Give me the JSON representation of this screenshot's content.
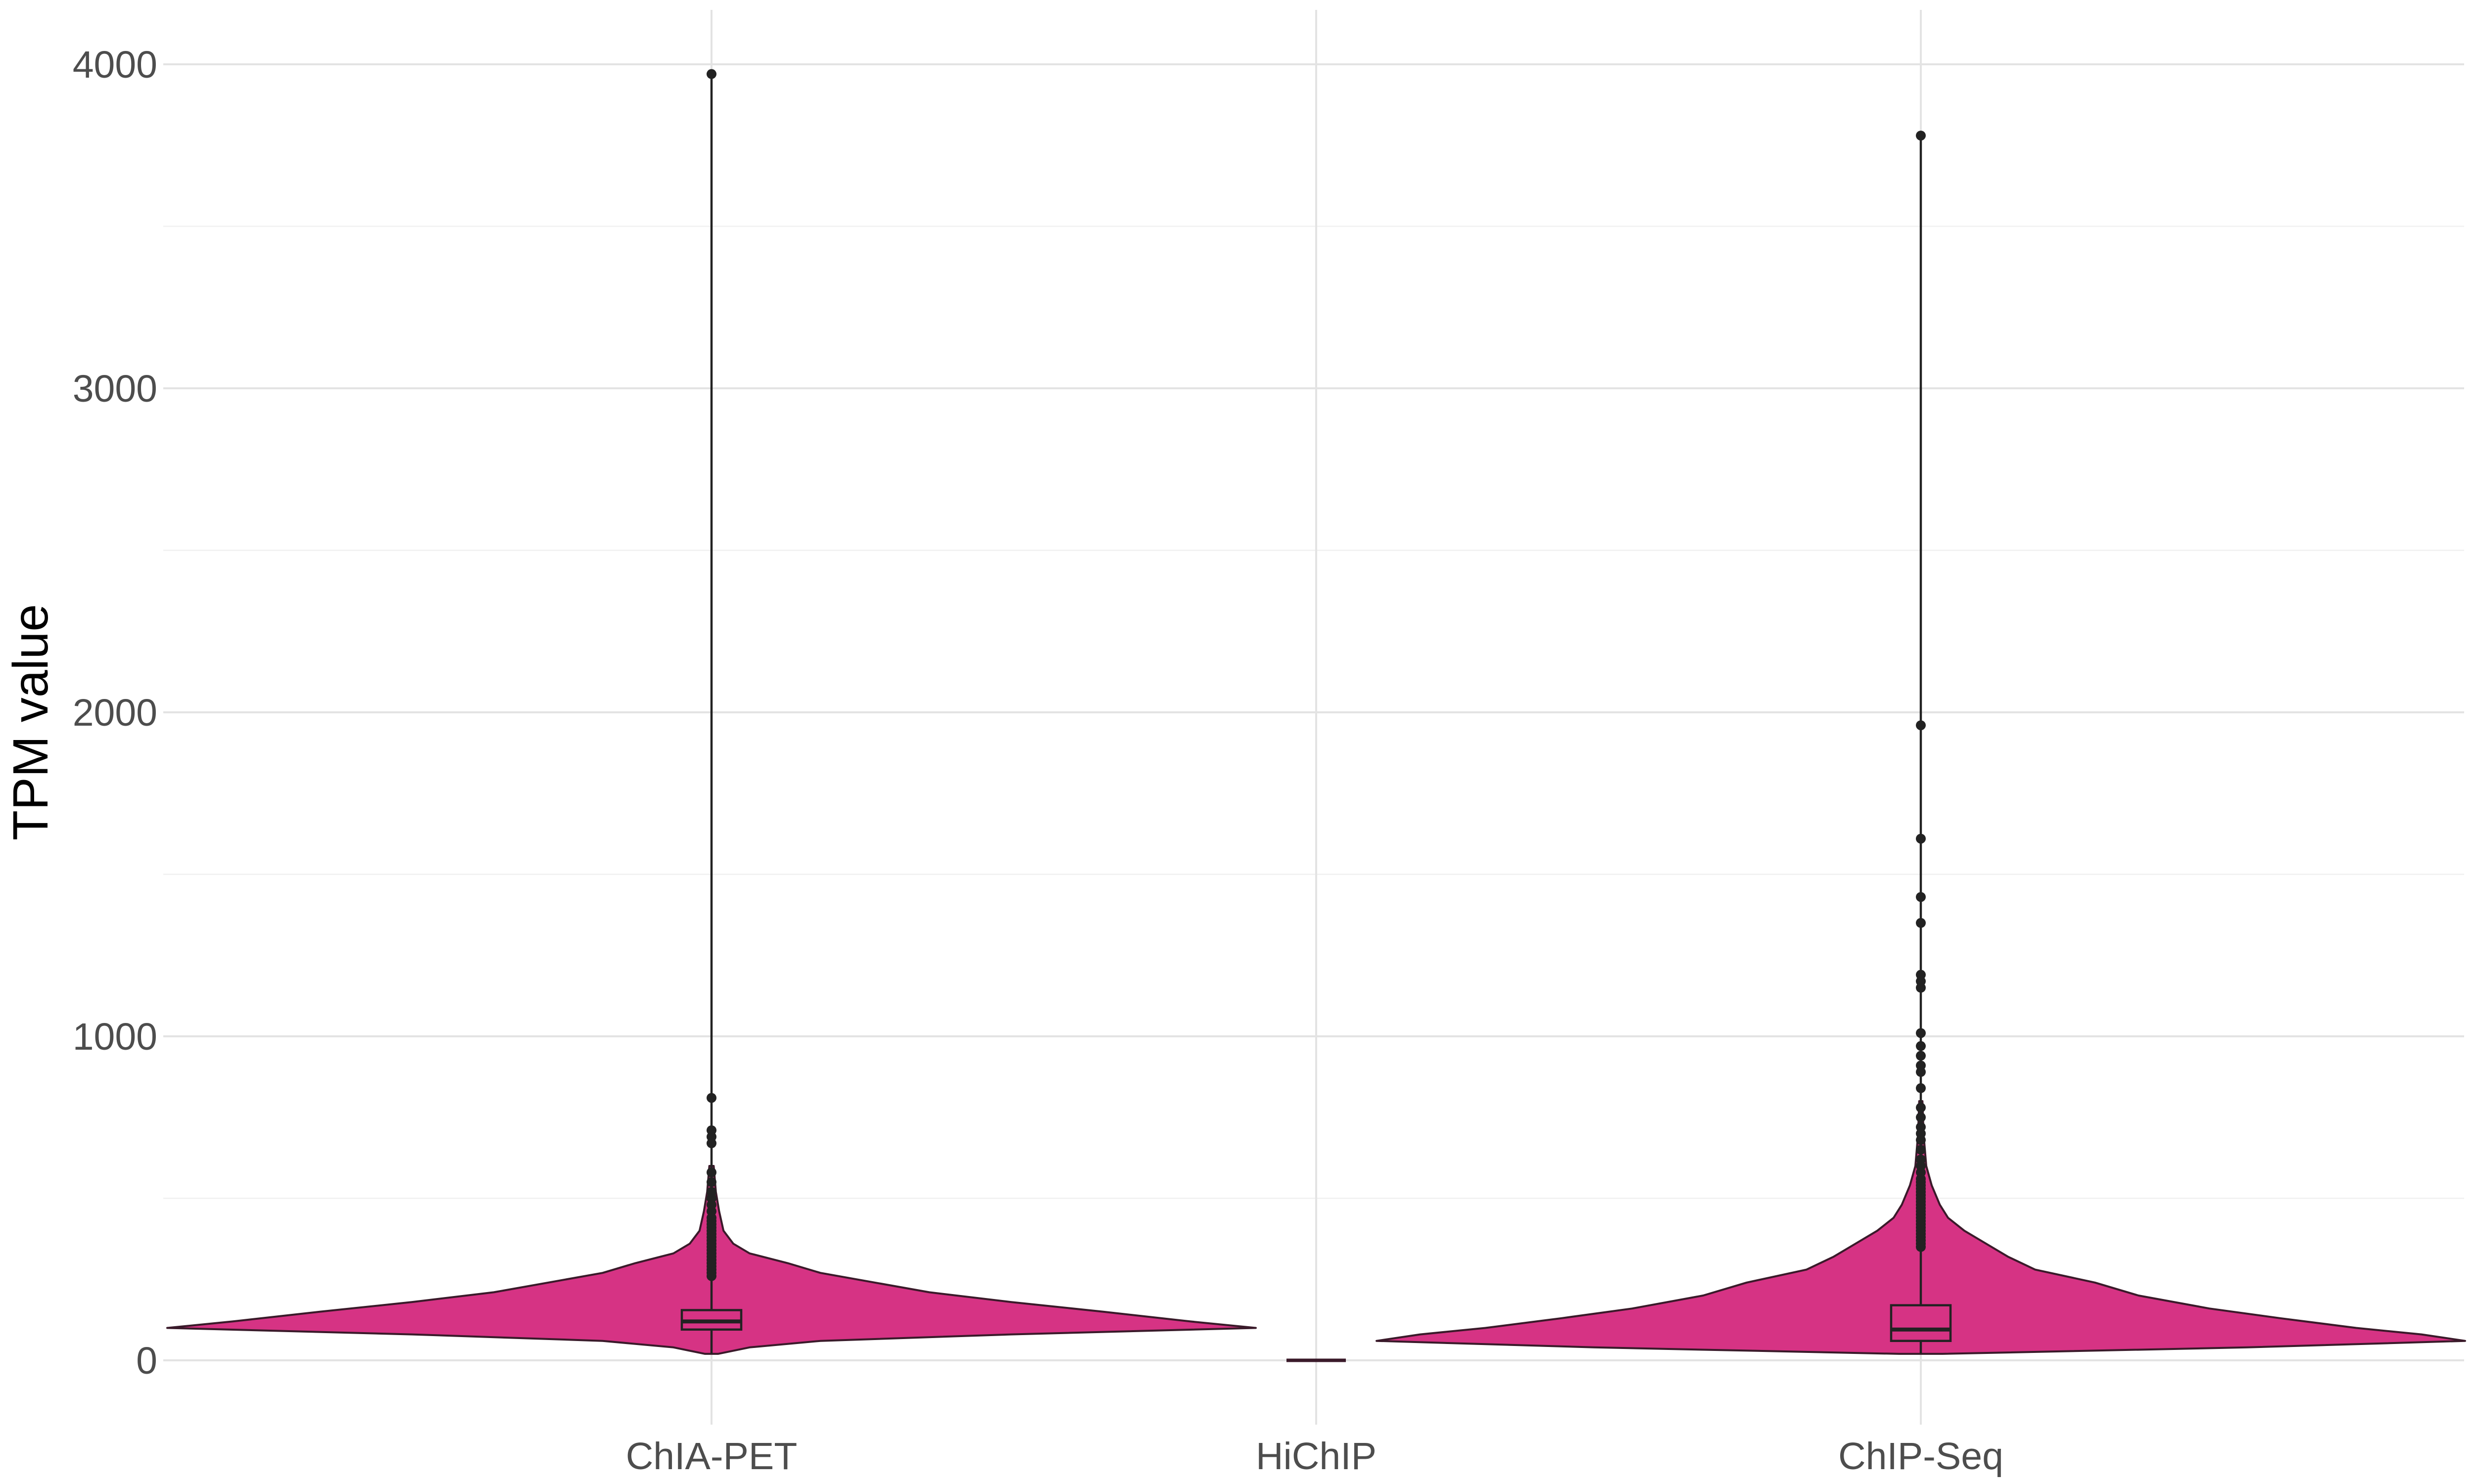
{
  "chart_data": {
    "type": "violin",
    "title": "",
    "xlabel": "",
    "ylabel": "TPM value",
    "ylim": [
      -50,
      4150
    ],
    "yticks": [
      0,
      1000,
      2000,
      3000,
      4000
    ],
    "grid": true,
    "fill_color": "#D63384",
    "outline_color": "#3a1a2a",
    "categories": [
      "ChIA-PET",
      "HiChIP",
      "ChIP-Seq"
    ],
    "groups": [
      {
        "name": "ChIA-PET",
        "box": {
          "q1": 95,
          "median": 120,
          "q3": 155,
          "whisker_low": 20,
          "whisker_high": 250
        },
        "max": 3970,
        "density": [
          [
            20,
            0.012
          ],
          [
            40,
            0.07
          ],
          [
            60,
            0.2
          ],
          [
            80,
            0.55
          ],
          [
            100,
            1.0
          ],
          [
            120,
            0.88
          ],
          [
            150,
            0.72
          ],
          [
            180,
            0.55
          ],
          [
            210,
            0.4
          ],
          [
            240,
            0.3
          ],
          [
            270,
            0.2
          ],
          [
            300,
            0.14
          ],
          [
            330,
            0.07
          ],
          [
            360,
            0.04
          ],
          [
            400,
            0.022
          ],
          [
            460,
            0.014
          ],
          [
            520,
            0.008
          ],
          [
            600,
            0.004
          ]
        ],
        "outliers": [
          260,
          270,
          280,
          290,
          300,
          310,
          320,
          330,
          340,
          350,
          360,
          370,
          380,
          390,
          400,
          410,
          420,
          430,
          440,
          460,
          480,
          500,
          520,
          550,
          580,
          670,
          690,
          710,
          810,
          3970
        ]
      },
      {
        "name": "HiChIP",
        "box": {
          "q1": 0,
          "median": 0,
          "q3": 0,
          "whisker_low": 0,
          "whisker_high": 0
        },
        "max": 0,
        "density": [],
        "outliers": []
      },
      {
        "name": "ChIP-Seq",
        "box": {
          "q1": 60,
          "median": 95,
          "q3": 170,
          "whisker_low": 20,
          "whisker_high": 340
        },
        "max": 3780,
        "density": [
          [
            20,
            0.04
          ],
          [
            40,
            0.6
          ],
          [
            60,
            1.0
          ],
          [
            80,
            0.92
          ],
          [
            100,
            0.8
          ],
          [
            130,
            0.66
          ],
          [
            160,
            0.53
          ],
          [
            200,
            0.4
          ],
          [
            240,
            0.32
          ],
          [
            280,
            0.21
          ],
          [
            320,
            0.16
          ],
          [
            360,
            0.12
          ],
          [
            400,
            0.08
          ],
          [
            440,
            0.05
          ],
          [
            480,
            0.035
          ],
          [
            540,
            0.02
          ],
          [
            600,
            0.01
          ],
          [
            700,
            0.005
          ],
          [
            800,
            0.003
          ]
        ],
        "outliers": [
          350,
          360,
          370,
          380,
          390,
          400,
          410,
          420,
          430,
          440,
          450,
          460,
          470,
          480,
          490,
          500,
          510,
          520,
          530,
          540,
          550,
          560,
          580,
          600,
          620,
          650,
          680,
          700,
          720,
          750,
          780,
          840,
          890,
          910,
          940,
          970,
          1010,
          1150,
          1170,
          1190,
          1350,
          1430,
          1610,
          1960,
          3780
        ]
      }
    ]
  }
}
